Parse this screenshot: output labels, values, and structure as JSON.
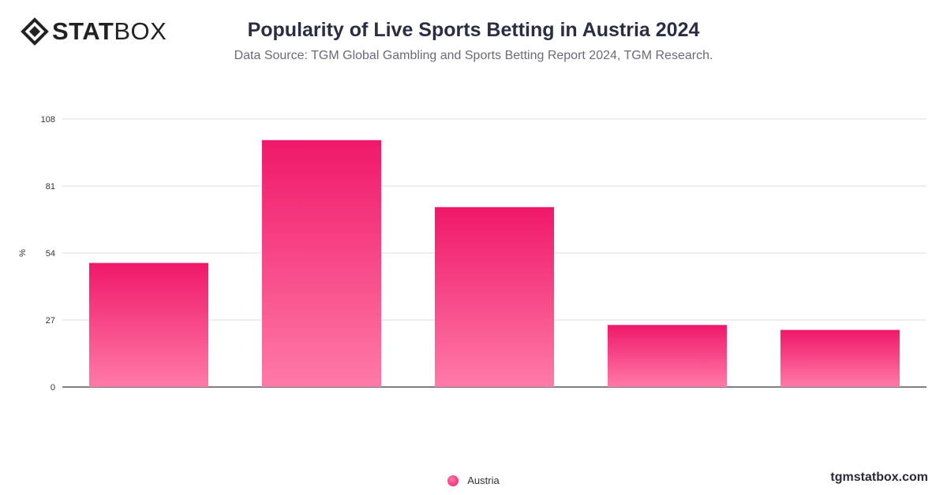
{
  "brand": {
    "logo_text_bold": "STAT",
    "logo_text_light": "BOX",
    "watermark": "tgmstatbox.com"
  },
  "chart_data": {
    "type": "bar",
    "title": "Popularity of Live Sports Betting in Austria 2024",
    "subtitle": "Data Source: TGM Global Gambling and Sports Betting Report 2024, TGM Research.",
    "xlabel": "",
    "ylabel": "%",
    "ylim": [
      0,
      108
    ],
    "yticks": [
      0,
      27,
      54,
      81,
      108
    ],
    "grid": true,
    "legend_position": "bottom-center",
    "categories": [
      "",
      "",
      "",
      "",
      ""
    ],
    "series": [
      {
        "name": "Austria",
        "color": "#f0186a",
        "color_light": "#ff7aa8",
        "values": [
          50,
          99.5,
          72.5,
          25,
          23
        ]
      }
    ]
  }
}
